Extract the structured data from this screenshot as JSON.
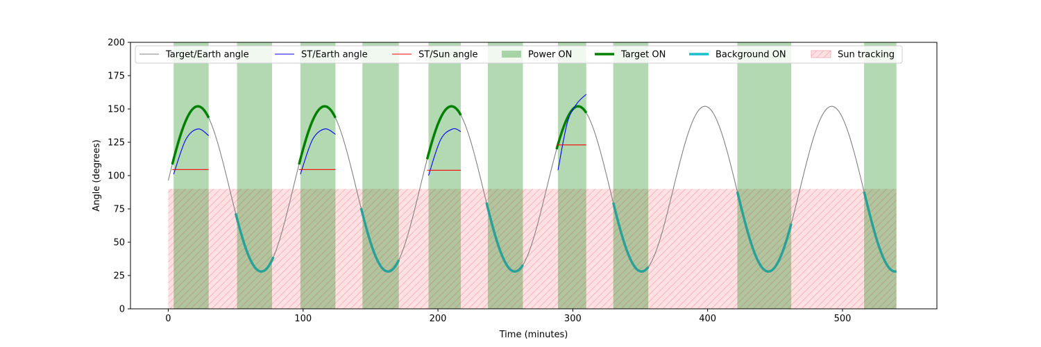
{
  "chart_data": {
    "type": "line",
    "title": "",
    "xlabel": "Time (minutes)",
    "ylabel": "Angle (degrees)",
    "xlim": [
      -28,
      570
    ],
    "ylim": [
      0,
      200
    ],
    "xticks": [
      0,
      100,
      200,
      300,
      400,
      500
    ],
    "yticks": [
      0,
      25,
      50,
      75,
      100,
      125,
      150,
      175,
      200
    ],
    "grid": false,
    "legend_position": "top",
    "orbit": {
      "period_minutes": 94,
      "mean_angle": 90,
      "amplitude": 62,
      "peak_time": 22
    },
    "series": [
      {
        "name": "Target/Earth angle",
        "color": "#808080",
        "x_range": [
          0,
          540
        ],
        "note_role": "full sinusoid"
      },
      {
        "name": "ST/Earth angle",
        "color": "#0000ff",
        "segments": [
          {
            "x": [
              4,
              13,
              22,
              30
            ],
            "y": [
              101,
              127,
              135,
              130
            ]
          },
          {
            "x": [
              98,
              107,
              116,
              124
            ],
            "y": [
              101,
              127,
              135,
              131
            ]
          },
          {
            "x": [
              193,
              202,
              211,
              217
            ],
            "y": [
              100,
              127,
              135,
              133
            ]
          },
          {
            "x": [
              289,
              296,
              303,
              310
            ],
            "y": [
              104,
              140,
              154,
              161
            ]
          }
        ]
      },
      {
        "name": "ST/Sun angle",
        "color": "#ff0000",
        "segments": [
          {
            "x": [
              3,
              30
            ],
            "y": [
              104.5,
              104.5
            ]
          },
          {
            "x": [
              97,
              124
            ],
            "y": [
              104.5,
              104.5
            ]
          },
          {
            "x": [
              192,
              217
            ],
            "y": [
              104,
              104
            ]
          },
          {
            "x": [
              288,
              310
            ],
            "y": [
              123,
              123
            ]
          }
        ]
      },
      {
        "name": "Power ON",
        "color": "#008000",
        "intervals": [
          [
            4,
            30
          ],
          [
            51,
            77
          ],
          [
            98,
            124
          ],
          [
            144,
            171
          ],
          [
            193,
            217
          ],
          [
            237,
            263
          ],
          [
            289,
            310
          ],
          [
            330,
            356
          ],
          [
            422,
            462
          ],
          [
            516,
            540
          ]
        ]
      },
      {
        "name": "Target ON",
        "color": "#008000",
        "intervals": [
          [
            3,
            30
          ],
          [
            97,
            124
          ],
          [
            192,
            217
          ],
          [
            288,
            310
          ]
        ]
      },
      {
        "name": "Background ON",
        "color": "#2aa198",
        "intervals": [
          [
            50,
            78
          ],
          [
            143,
            171
          ],
          [
            236,
            263
          ],
          [
            330,
            356
          ],
          [
            422,
            462
          ],
          [
            516,
            540
          ]
        ]
      },
      {
        "name": "Sun tracking",
        "color": "#ffb3ba",
        "intervals": [
          [
            0,
            540
          ]
        ],
        "y_range": [
          0,
          90
        ]
      }
    ]
  }
}
